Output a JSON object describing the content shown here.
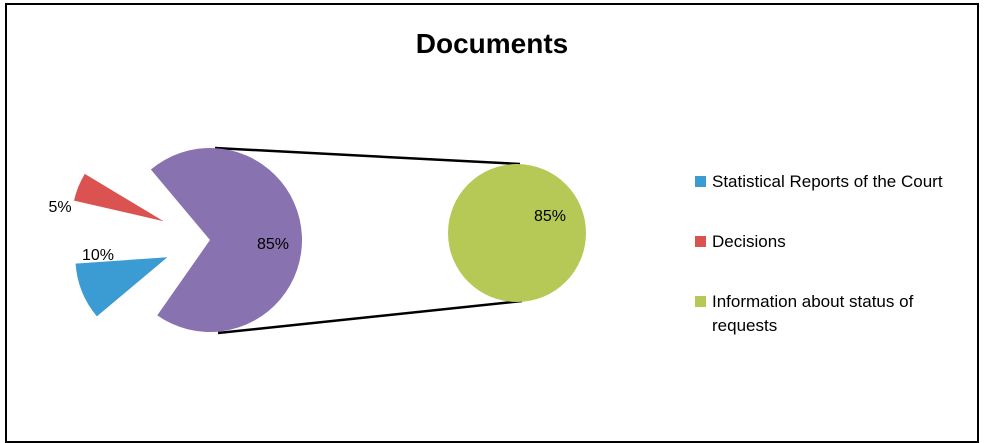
{
  "chart_data": {
    "type": "pie",
    "title": "Documents",
    "slices": [
      {
        "name": "Statistical Reports of the Court",
        "value": 10,
        "label": "10%",
        "color": "#3B9BD3"
      },
      {
        "name": "Decisions",
        "value": 5,
        "label": "5%",
        "color": "#DB5350"
      },
      {
        "name": "Information about status of requests",
        "value": 85,
        "label": "85%",
        "color": "#8872B0"
      }
    ],
    "secondary_pie": {
      "label": "85%",
      "value": 85,
      "color": "#B6C957"
    },
    "legend_position": "right"
  }
}
